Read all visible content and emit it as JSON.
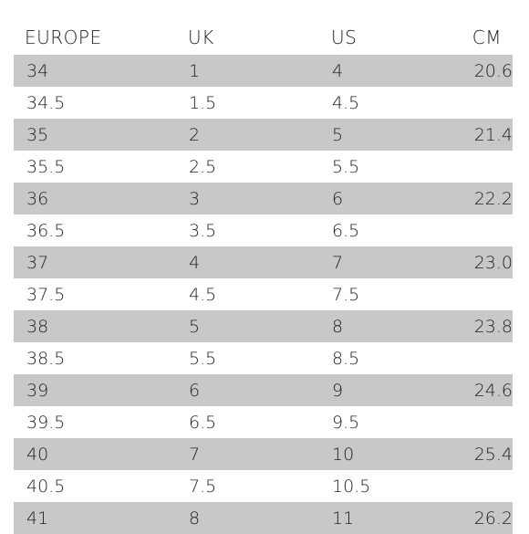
{
  "headers": {
    "europe": "EUROPE",
    "uk": "UK",
    "us": "US",
    "cm": "CM"
  },
  "rows": [
    {
      "europe": "34",
      "uk": "1",
      "us": "4",
      "cm": "20.6"
    },
    {
      "europe": "34.5",
      "uk": "1.5",
      "us": "4.5",
      "cm": ""
    },
    {
      "europe": "35",
      "uk": "2",
      "us": "5",
      "cm": "21.4"
    },
    {
      "europe": "35.5",
      "uk": "2.5",
      "us": "5.5",
      "cm": ""
    },
    {
      "europe": "36",
      "uk": "3",
      "us": "6",
      "cm": "22.2"
    },
    {
      "europe": "36.5",
      "uk": "3.5",
      "us": "6.5",
      "cm": ""
    },
    {
      "europe": "37",
      "uk": "4",
      "us": "7",
      "cm": "23.0"
    },
    {
      "europe": "37.5",
      "uk": "4.5",
      "us": "7.5",
      "cm": ""
    },
    {
      "europe": "38",
      "uk": "5",
      "us": "8",
      "cm": "23.8"
    },
    {
      "europe": "38.5",
      "uk": "5.5",
      "us": "8.5",
      "cm": ""
    },
    {
      "europe": "39",
      "uk": "6",
      "us": "9",
      "cm": "24.6"
    },
    {
      "europe": "39.5",
      "uk": "6.5",
      "us": "9.5",
      "cm": ""
    },
    {
      "europe": "40",
      "uk": "7",
      "us": "10",
      "cm": "25.4"
    },
    {
      "europe": "40.5",
      "uk": "7.5",
      "us": "10.5",
      "cm": ""
    },
    {
      "europe": "41",
      "uk": "8",
      "us": "11",
      "cm": "26.2"
    }
  ],
  "colors": {
    "shaded_row": "#c8c8c8",
    "text": "#1f1f1f",
    "background": "#ffffff"
  }
}
